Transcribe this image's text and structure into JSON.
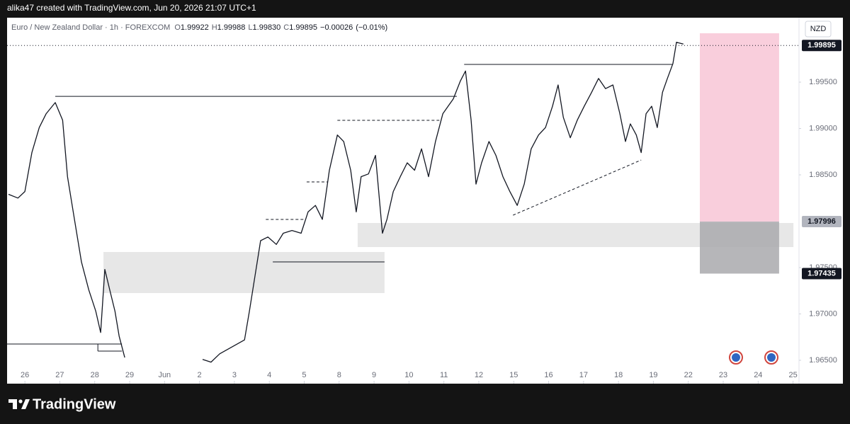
{
  "watermark": "alika47 created with TradingView.com, Jun 20, 2026 21:07 UTC+1",
  "footer": "TradingView",
  "chart_data": {
    "type": "line",
    "symbol": "Euro / New Zealand Dollar · 1h · FOREXCOM",
    "ohlc_labels": [
      "O",
      "H",
      "L",
      "C"
    ],
    "ohlc": [
      1.99922,
      1.99988,
      {
        "value": 1.9983,
        "label": "1.99830"
      },
      1.99895
    ],
    "change": {
      "value": -0.00026,
      "label": "−0.00026"
    },
    "change_pct": {
      "value": -0.01,
      "label": "(−0.01%)"
    },
    "currency": "NZD",
    "color": "#131722",
    "x": [
      -0.47,
      -0.2,
      0,
      0.2,
      0.41,
      0.61,
      0.87,
      1.08,
      1.22,
      1.42,
      1.62,
      1.83,
      2.03,
      2.17,
      2.29,
      2.43,
      2.58,
      2.7,
      2.86,
      4.0,
      5.09,
      5.33,
      5.58,
      6.29,
      6.43,
      6.59,
      6.75,
      6.96,
      7.2,
      7.4,
      7.65,
      7.91,
      8.11,
      8.32,
      8.52,
      8.72,
      8.95,
      9.13,
      9.33,
      9.49,
      9.63,
      9.84,
      10.04,
      10.24,
      10.37,
      10.55,
      10.75,
      10.95,
      11.16,
      11.36,
      11.56,
      11.76,
      11.97,
      12.27,
      12.47,
      12.62,
      12.78,
      12.92,
      13.08,
      13.29,
      13.49,
      13.69,
      13.89,
      14.1,
      14.3,
      14.5,
      14.71,
      14.91,
      15.11,
      15.27,
      15.42,
      15.62,
      15.82,
      16.02,
      16.23,
      16.43,
      16.63,
      16.84,
      17.04,
      17.2,
      17.34,
      17.51,
      17.65,
      17.79,
      17.95,
      18.11,
      18.26,
      18.4,
      18.56,
      18.66,
      18.86
    ],
    "values": [
      1.9829,
      1.9825,
      1.9832,
      1.9874,
      1.9901,
      1.9916,
      1.9928,
      1.9909,
      1.9848,
      1.9802,
      1.9756,
      1.9726,
      1.9703,
      1.968,
      1.9748,
      1.9726,
      1.9703,
      1.9676,
      1.9653,
      null,
      1.9651,
      1.9648,
      1.9657,
      1.9672,
      1.9703,
      1.9741,
      1.9779,
      1.9783,
      1.9775,
      1.9787,
      1.979,
      1.9787,
      1.981,
      1.9817,
      1.9802,
      1.9855,
      1.9893,
      1.9886,
      1.9855,
      1.981,
      1.9848,
      1.9851,
      1.9871,
      1.9787,
      1.9802,
      1.9832,
      1.9848,
      1.9863,
      1.9855,
      1.9878,
      1.9848,
      1.9886,
      1.9916,
      1.9932,
      1.9951,
      1.9962,
      1.9909,
      1.984,
      1.9863,
      1.9886,
      1.9871,
      1.9848,
      1.9832,
      1.9817,
      1.984,
      1.9878,
      1.9893,
      1.9901,
      1.9924,
      1.9947,
      1.9912,
      1.989,
      1.9909,
      1.9924,
      1.9939,
      1.9954,
      1.9943,
      1.9947,
      1.9916,
      1.9886,
      1.9905,
      1.9893,
      1.9874,
      1.9916,
      1.9924,
      1.9901,
      1.9939,
      1.9954,
      1.997,
      1.9993,
      1.9991
    ],
    "xlim": [
      -0.51,
      22.17
    ],
    "xticks": [
      {
        "value": 0,
        "label": "26"
      },
      {
        "value": 1,
        "label": "27"
      },
      {
        "value": 2,
        "label": "28"
      },
      {
        "value": 3,
        "label": "29"
      },
      {
        "value": 4,
        "label": "Jun"
      },
      {
        "value": 5,
        "label": "2"
      },
      {
        "value": 6,
        "label": "3"
      },
      {
        "value": 7,
        "label": "4"
      },
      {
        "value": 8,
        "label": "5"
      },
      {
        "value": 9,
        "label": "8"
      },
      {
        "value": 10,
        "label": "9"
      },
      {
        "value": 11,
        "label": "10"
      },
      {
        "value": 12,
        "label": "11"
      },
      {
        "value": 13,
        "label": "12"
      },
      {
        "value": 14,
        "label": "15"
      },
      {
        "value": 15,
        "label": "16"
      },
      {
        "value": 16,
        "label": "17"
      },
      {
        "value": 17,
        "label": "18"
      },
      {
        "value": 18,
        "label": "19"
      },
      {
        "value": 19,
        "label": "22"
      },
      {
        "value": 20,
        "label": "23"
      },
      {
        "value": 21,
        "label": "24"
      },
      {
        "value": 22,
        "label": "25"
      }
    ],
    "ylim": [
      1.96248,
      2.00195
    ],
    "yticks": [
      {
        "value": 1.965,
        "label": "1.96500"
      },
      {
        "value": 1.97,
        "label": "1.97000"
      },
      {
        "value": 1.975,
        "label": "1.97500"
      },
      {
        "value": 1.985,
        "label": "1.98500"
      },
      {
        "value": 1.99,
        "label": "1.99000"
      },
      {
        "value": 1.995,
        "label": "1.99500"
      }
    ],
    "price_labels": [
      1.99895,
      1.97996,
      1.97435
    ],
    "price_label_styles": [
      "dark",
      "gray",
      "dark"
    ],
    "drawings": [
      {
        "kind": "zone",
        "x": [
          2.25,
          10.3
        ],
        "y": [
          1.97225,
          1.97668
        ],
        "color": "#e3e3e3"
      },
      {
        "kind": "zone",
        "x": [
          9.53,
          22.01
        ],
        "y": [
          1.97721,
          1.97981
        ],
        "color": "#e3e3e3"
      },
      {
        "kind": "zone",
        "x": [
          19.33,
          21.6
        ],
        "y": [
          1.97996,
          2.00027
        ],
        "color": "#f8c5d6"
      },
      {
        "kind": "zone",
        "x": [
          19.33,
          21.6
        ],
        "y": [
          1.97435,
          1.97996
        ],
        "color": "#a9a9ad"
      },
      {
        "kind": "line",
        "x": [
          0.87,
          12.37
        ],
        "y": [
          1.99347,
          1.99347
        ],
        "dash": false
      },
      {
        "kind": "line",
        "x": [
          12.58,
          18.56
        ],
        "y": [
          1.99691,
          1.99691
        ],
        "dash": false
      },
      {
        "kind": "line",
        "x": [
          8.95,
          11.89
        ],
        "y": [
          1.99088,
          1.99088
        ],
        "dash": true
      },
      {
        "kind": "line",
        "x": [
          7.1,
          10.3
        ],
        "y": [
          1.97561,
          1.97561
        ],
        "dash": false
      },
      {
        "kind": "line",
        "x": [
          6.9,
          8.01
        ],
        "y": [
          1.98019,
          1.98019
        ],
        "dash": true
      },
      {
        "kind": "line",
        "x": [
          8.07,
          8.66
        ],
        "y": [
          1.98424,
          1.98424
        ],
        "dash": true
      },
      {
        "kind": "line",
        "x": [
          13.98,
          17.65
        ],
        "y": [
          1.98065,
          1.9866
        ],
        "dash": true
      },
      {
        "kind": "line",
        "x": [
          -0.51,
          2.78
        ],
        "y": [
          1.96676,
          1.96676
        ],
        "dash": false
      },
      {
        "kind": "line",
        "x": [
          2.09,
          2.78
        ],
        "y": [
          1.96599,
          1.96599
        ],
        "dash": false
      },
      {
        "kind": "line",
        "x": [
          2.09,
          2.09
        ],
        "y": [
          1.96676,
          1.96599
        ],
        "dash": false
      }
    ]
  }
}
